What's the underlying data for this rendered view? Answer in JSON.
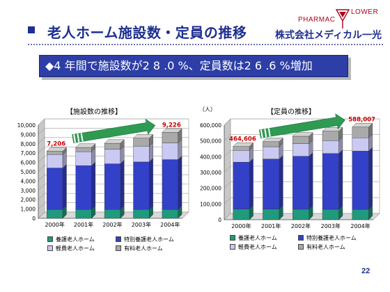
{
  "header": {
    "title": "老人ホーム施設数・定員の推移",
    "brand_pharmac": "PHARMAC",
    "brand_lower": "LOWER",
    "company": "株式会社メディカル一光"
  },
  "banner": {
    "text": "◆4 年間で施設数が2 8 .0 %、定員数は2 6 .6 %増加"
  },
  "page_number": "22",
  "colors": {
    "yogo": "#1f9a7c",
    "tokubetsu": "#3340c8",
    "keihi": "#c9c9f2",
    "yuryo": "#a9a9a9",
    "accent_red": "#cc0000",
    "arrow_green": "#2e9a52",
    "title_blue": "#1e2f8f"
  },
  "chart_data": [
    {
      "type": "bar",
      "stacked": true,
      "title": "【施設数の推移】",
      "unit_label": "",
      "categories": [
        "2000年",
        "2001年",
        "2002年",
        "2003年",
        "2004年"
      ],
      "ylim": [
        0,
        10000
      ],
      "yticks": [
        "0",
        "1,000",
        "2,000",
        "3,000",
        "4,000",
        "5,000",
        "6,000",
        "7,000",
        "8,000",
        "9,000",
        "10,000"
      ],
      "series": [
        {
          "name": "養護老人ホーム",
          "values": [
            950,
            950,
            950,
            950,
            950
          ]
        },
        {
          "name": "特別養護老人ホーム",
          "values": [
            4450,
            4700,
            4900,
            5100,
            5350
          ]
        },
        {
          "name": "軽費老人ホーム",
          "values": [
            1450,
            1500,
            1550,
            1700,
            1800
          ]
        },
        {
          "name": "有料老人ホーム",
          "values": [
            356,
            450,
            650,
            850,
            1126
          ]
        }
      ],
      "totals": [
        7206,
        7600,
        8050,
        8600,
        9226
      ],
      "annotations": [
        {
          "label": "7,206",
          "index": 0
        },
        {
          "label": "9,226",
          "index": 4
        }
      ],
      "grid": true
    },
    {
      "type": "bar",
      "stacked": true,
      "title": "【定員の推移】",
      "unit_label": "（人）",
      "categories": [
        "2000年",
        "2001年",
        "2002年",
        "2003年",
        "2004年"
      ],
      "ylim": [
        0,
        600000
      ],
      "yticks": [
        "0",
        "100,000",
        "200,000",
        "300,000",
        "400,000",
        "500,000",
        "600,000"
      ],
      "series": [
        {
          "name": "養護老人ホーム",
          "values": [
            67000,
            67000,
            66500,
            66000,
            65500
          ]
        },
        {
          "name": "特別養護老人ホーム",
          "values": [
            298000,
            318000,
            336000,
            354000,
            370000
          ]
        },
        {
          "name": "軽費老人ホーム",
          "values": [
            75000,
            78000,
            80000,
            82000,
            84000
          ]
        },
        {
          "name": "有料老人ホーム",
          "values": [
            24606,
            32000,
            47000,
            60000,
            68507
          ]
        }
      ],
      "totals": [
        464606,
        495000,
        529500,
        562000,
        588007
      ],
      "annotations": [
        {
          "label": "464,606",
          "index": 0
        },
        {
          "label": "588,007",
          "index": 4
        }
      ],
      "grid": true
    }
  ]
}
